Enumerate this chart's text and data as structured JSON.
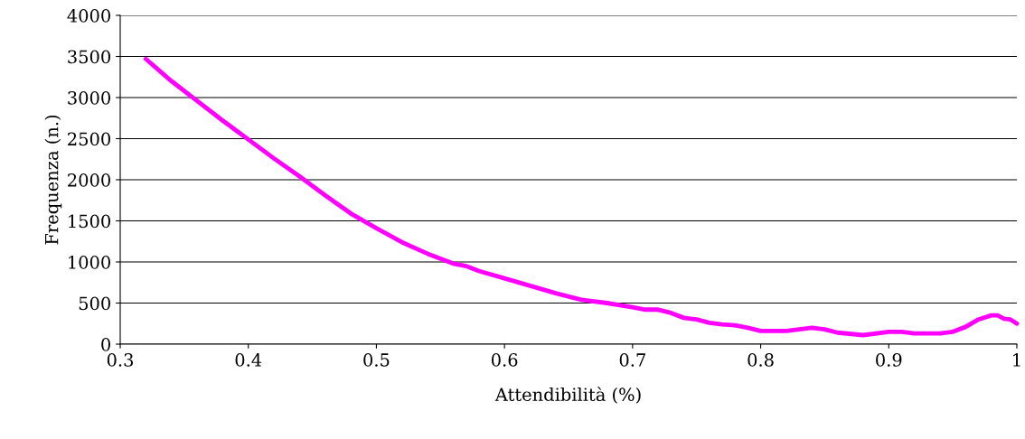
{
  "chart_data": {
    "type": "line",
    "xlabel": "Attendibilità (%)",
    "ylabel": "Frequenza (n.)",
    "x": [
      0.32,
      0.34,
      0.36,
      0.38,
      0.4,
      0.42,
      0.44,
      0.46,
      0.48,
      0.5,
      0.52,
      0.54,
      0.56,
      0.57,
      0.58,
      0.6,
      0.62,
      0.64,
      0.66,
      0.68,
      0.7,
      0.71,
      0.72,
      0.73,
      0.74,
      0.75,
      0.76,
      0.77,
      0.78,
      0.79,
      0.8,
      0.82,
      0.84,
      0.85,
      0.86,
      0.88,
      0.9,
      0.91,
      0.92,
      0.94,
      0.95,
      0.96,
      0.97,
      0.98,
      0.985,
      0.99,
      0.995,
      1.0
    ],
    "series": [
      {
        "color": "#ff00ff",
        "values": [
          3470,
          3200,
          2960,
          2720,
          2490,
          2260,
          2040,
          1810,
          1590,
          1410,
          1240,
          1100,
          980,
          950,
          890,
          800,
          710,
          620,
          540,
          500,
          450,
          420,
          420,
          380,
          320,
          300,
          260,
          240,
          230,
          200,
          160,
          160,
          200,
          180,
          140,
          110,
          150,
          150,
          130,
          130,
          150,
          210,
          300,
          350,
          350,
          310,
          300,
          250
        ]
      }
    ],
    "xlim": [
      0.3,
      1
    ],
    "xticks": [
      0.3,
      0.4,
      0.5,
      0.6,
      0.7,
      0.8,
      0.9,
      1
    ],
    "ylim": [
      0,
      4000
    ],
    "yticks": [
      0,
      500,
      1000,
      1500,
      2000,
      2500,
      3000,
      3500,
      4000
    ],
    "grid": "y",
    "legend": false,
    "marker": "none",
    "line_style": "solid"
  }
}
